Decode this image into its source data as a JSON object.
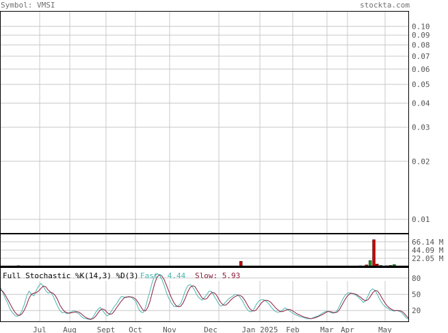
{
  "header": {
    "symbol_text": "Symbol: VMSI",
    "site_text": "stockta.com"
  },
  "colors": {
    "grid": "#c8c8c8",
    "axis_text": "#555555",
    "border": "#000000",
    "vol_up": "#228b22",
    "vol_down": "#cc0000",
    "fast_line": "#49b5b0",
    "slow_line": "#8b1a3a",
    "stoch_title": "#000000"
  },
  "chart_data": [
    {
      "type": "line",
      "panel": "price",
      "y_scale": "log",
      "ylim": [
        0.0085,
        0.12
      ],
      "y_tick_labels": [
        "0.10",
        "0.09",
        "0.08",
        "0.07",
        "0.06",
        "0.05",
        "0.04",
        "0.03",
        "0.02",
        "0.01"
      ],
      "y_tick_values": [
        0.1,
        0.09,
        0.08,
        0.07,
        0.06,
        0.05,
        0.04,
        0.03,
        0.02,
        0.01
      ],
      "x_labels": [
        "Jul",
        "Aug",
        "Sept",
        "Oct",
        "Nov",
        "Dec",
        "Jan 2025",
        "Feb",
        "Mar",
        "Apr",
        "May"
      ],
      "series": []
    },
    {
      "type": "bar",
      "panel": "volume",
      "y_tick_labels": [
        "66.14 M",
        "44.09 M",
        "22.05 M"
      ],
      "y_tick_values": [
        66.14,
        44.09,
        22.05
      ],
      "ylim": [
        0,
        88
      ],
      "unit": "M",
      "bars": [
        {
          "pos": 0.045,
          "value": 2.5,
          "dir": "down"
        },
        {
          "pos": 0.096,
          "value": 1.5,
          "dir": "up"
        },
        {
          "pos": 0.104,
          "value": 1.2,
          "dir": "up"
        },
        {
          "pos": 0.163,
          "value": 1.5,
          "dir": "up"
        },
        {
          "pos": 0.18,
          "value": 1.3,
          "dir": "up"
        },
        {
          "pos": 0.589,
          "value": 14,
          "dir": "down"
        },
        {
          "pos": 0.881,
          "value": 2,
          "dir": "up"
        },
        {
          "pos": 0.896,
          "value": 4.5,
          "dir": "down"
        },
        {
          "pos": 0.905,
          "value": 16,
          "dir": "up"
        },
        {
          "pos": 0.914,
          "value": 72,
          "dir": "down"
        },
        {
          "pos": 0.922,
          "value": 7,
          "dir": "down"
        },
        {
          "pos": 0.931,
          "value": 3,
          "dir": "up"
        },
        {
          "pos": 0.946,
          "value": 2.2,
          "dir": "down"
        },
        {
          "pos": 0.955,
          "value": 3.2,
          "dir": "up"
        },
        {
          "pos": 0.964,
          "value": 5.5,
          "dir": "up"
        },
        {
          "pos": 0.98,
          "value": 1.5,
          "dir": "down"
        },
        {
          "pos": 0.992,
          "value": 1.5,
          "dir": "down"
        }
      ]
    },
    {
      "type": "line",
      "panel": "stochastic",
      "title": "Full Stochastic %K(14,3) %D(3)",
      "fast_label": "Fast: 4.44",
      "slow_label": "Slow: 5.93",
      "ylim": [
        0,
        100
      ],
      "y_tick_labels": [
        "80",
        "50",
        "20"
      ],
      "y_tick_values": [
        80,
        50,
        20
      ],
      "series": [
        {
          "name": "Fast",
          "values": [
            62,
            52,
            42,
            33,
            22,
            16,
            11,
            9,
            12,
            20,
            32,
            47,
            56,
            50,
            47,
            57,
            65,
            70,
            64,
            57,
            52,
            54,
            48,
            38,
            28,
            20,
            16,
            17,
            14,
            16,
            18,
            20,
            16,
            14,
            9,
            6,
            5,
            4,
            3,
            8,
            16,
            22,
            26,
            20,
            14,
            10,
            14,
            21,
            28,
            33,
            41,
            46,
            45,
            44,
            46,
            45,
            41,
            37,
            25,
            18,
            16,
            24,
            41,
            56,
            73,
            85,
            88,
            86,
            78,
            66,
            52,
            42,
            34,
            28,
            27,
            29,
            33,
            45,
            58,
            66,
            68,
            63,
            56,
            47,
            42,
            39,
            44,
            50,
            56,
            55,
            47,
            40,
            32,
            28,
            31,
            36,
            41,
            44,
            47,
            50,
            49,
            44,
            38,
            29,
            22,
            18,
            18,
            24,
            32,
            38,
            40,
            40,
            37,
            33,
            27,
            22,
            18,
            17,
            18,
            21,
            25,
            22,
            19,
            16,
            13,
            11,
            9,
            8,
            7,
            5,
            5,
            5,
            7,
            9,
            10,
            13,
            16,
            18,
            19,
            17,
            15,
            16,
            20,
            29,
            38,
            46,
            51,
            53,
            52,
            50,
            48,
            44,
            40,
            35,
            38,
            47,
            57,
            60,
            57,
            49,
            40,
            33,
            28,
            25,
            22,
            20,
            19,
            20,
            19,
            17,
            12,
            7,
            4
          ]
        },
        {
          "name": "Slow",
          "values": [
            58,
            55,
            48,
            40,
            32,
            24,
            17,
            12,
            11,
            14,
            21,
            31,
            43,
            50,
            52,
            53,
            56,
            61,
            65,
            64,
            58,
            54,
            52,
            48,
            40,
            30,
            23,
            18,
            16,
            15,
            16,
            17,
            18,
            17,
            14,
            10,
            7,
            5,
            4,
            5,
            9,
            15,
            21,
            23,
            21,
            16,
            13,
            14,
            19,
            26,
            32,
            38,
            43,
            45,
            45,
            45,
            44,
            41,
            35,
            28,
            21,
            19,
            25,
            37,
            54,
            70,
            82,
            86,
            84,
            77,
            66,
            55,
            44,
            35,
            29,
            27,
            28,
            34,
            44,
            55,
            63,
            66,
            64,
            57,
            50,
            43,
            41,
            42,
            48,
            53,
            53,
            49,
            41,
            34,
            30,
            30,
            34,
            39,
            43,
            46,
            48,
            48,
            45,
            39,
            31,
            24,
            20,
            19,
            22,
            28,
            34,
            38,
            39,
            38,
            35,
            30,
            25,
            21,
            18,
            18,
            20,
            22,
            22,
            20,
            17,
            14,
            12,
            10,
            8,
            7,
            6,
            5,
            6,
            7,
            9,
            11,
            13,
            16,
            18,
            18,
            17,
            16,
            17,
            22,
            30,
            38,
            45,
            50,
            52,
            51,
            50,
            47,
            44,
            40,
            38,
            40,
            46,
            53,
            57,
            56,
            50,
            42,
            35,
            29,
            25,
            22,
            20,
            20,
            20,
            19,
            16,
            11,
            6
          ]
        }
      ]
    }
  ]
}
